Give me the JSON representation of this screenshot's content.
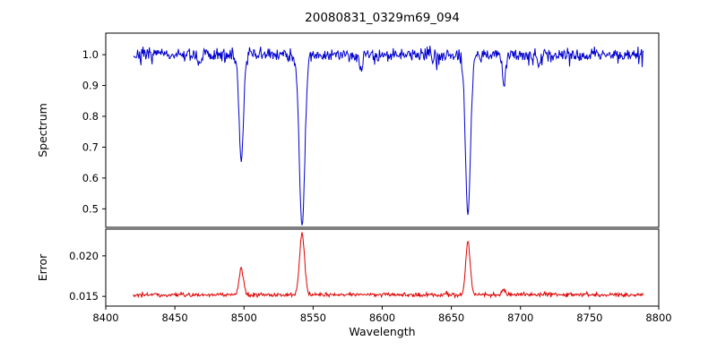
{
  "title": "20080831_0329m69_094",
  "xlabel": "Wavelength",
  "chart_data": {
    "type": "line",
    "title": "20080831_0329m69_094",
    "xlabel": "Wavelength",
    "xlim": [
      8400,
      8800
    ],
    "xticks": [
      8400,
      8450,
      8500,
      8550,
      8600,
      8650,
      8700,
      8750,
      8800
    ],
    "x_start": 8420,
    "x_end": 8789,
    "x_step": 0.5,
    "seed": 7,
    "grid": false,
    "legend": false,
    "panels": [
      {
        "name": "spectrum",
        "ylabel": "Spectrum",
        "ylim": [
          0.44,
          1.07
        ],
        "yticks": [
          0.5,
          0.6,
          0.7,
          0.8,
          0.9,
          1.0
        ],
        "ytick_labels": [
          "0.5",
          "0.6",
          "0.7",
          "0.8",
          "0.9",
          "1.0"
        ],
        "color": "#0000cd",
        "baseline": 1.0,
        "noise_amplitude": 0.011,
        "spike_probability": 0.05,
        "spike_max_depth": 0.035,
        "absorption_lines": [
          {
            "center": 8498,
            "depth": 0.345,
            "sigma": 1.6
          },
          {
            "center": 8542,
            "depth": 0.555,
            "sigma": 2.0
          },
          {
            "center": 8662,
            "depth": 0.52,
            "sigma": 1.8
          }
        ],
        "minor_lines": [
          {
            "center": 8468,
            "depth": 0.045,
            "sigma": 0.9
          },
          {
            "center": 8585,
            "depth": 0.05,
            "sigma": 1.0
          },
          {
            "center": 8688,
            "depth": 0.1,
            "sigma": 1.2
          },
          {
            "center": 8713,
            "depth": 0.04,
            "sigma": 0.8
          }
        ]
      },
      {
        "name": "error",
        "ylabel": "Error",
        "ylim": [
          0.0138,
          0.0233
        ],
        "yticks": [
          0.015,
          0.02
        ],
        "ytick_labels": [
          "0.015",
          "0.020"
        ],
        "color": "#dd0000",
        "baseline": 0.0152,
        "noise_amplitude": 0.00012,
        "spike_probability": 0.04,
        "spike_max_amp": 0.0004,
        "peaks": [
          {
            "center": 8498,
            "amp": 0.0032,
            "sigma": 1.6
          },
          {
            "center": 8542,
            "amp": 0.0075,
            "sigma": 1.8
          },
          {
            "center": 8662,
            "amp": 0.0066,
            "sigma": 1.6
          },
          {
            "center": 8688,
            "amp": 0.0006,
            "sigma": 1.2
          }
        ]
      }
    ]
  }
}
